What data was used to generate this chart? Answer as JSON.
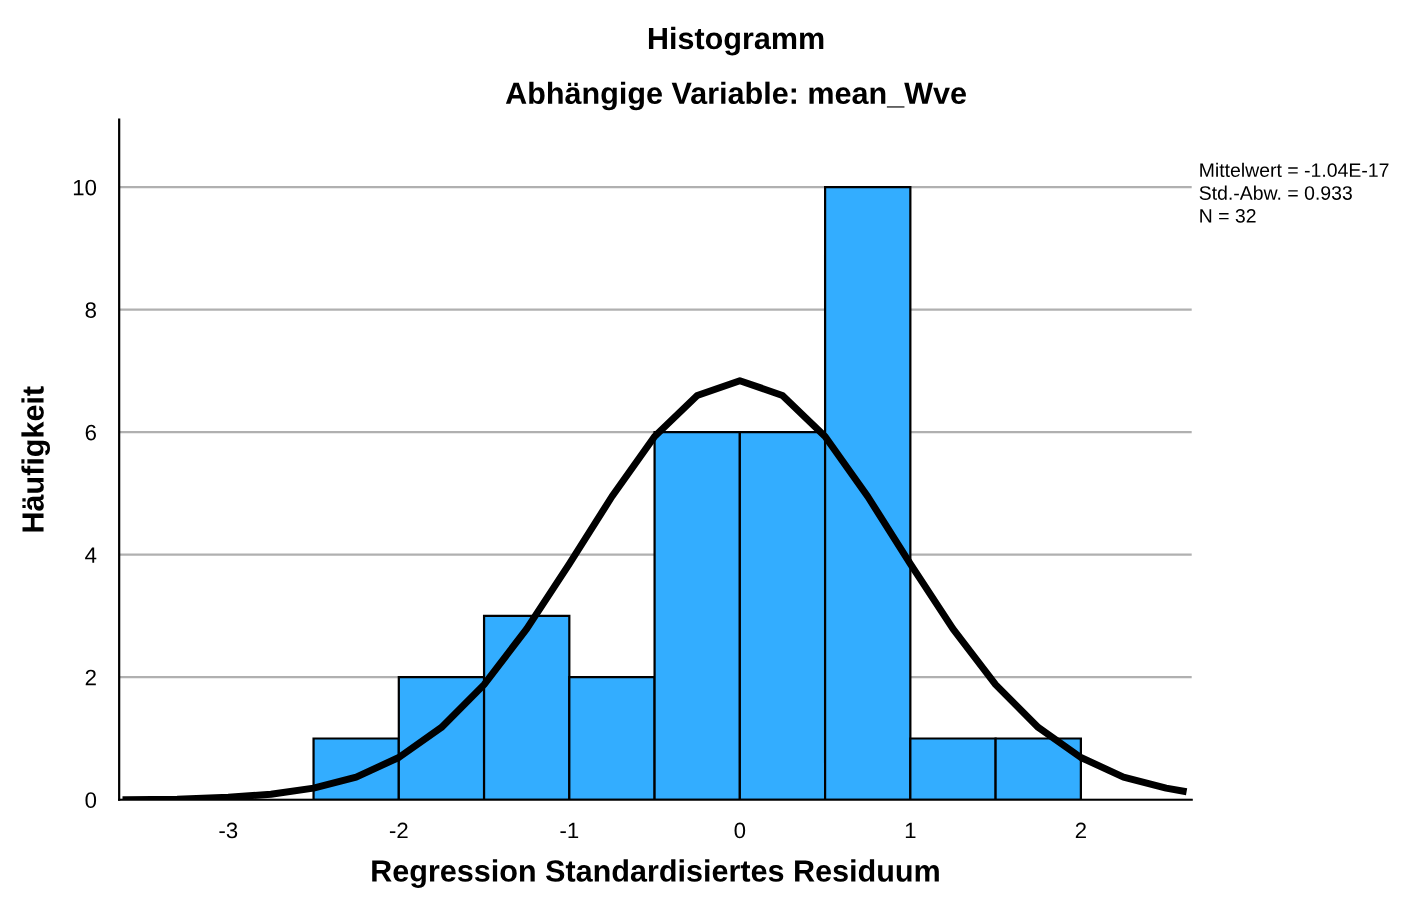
{
  "chart_data": {
    "type": "histogram",
    "title": "Histogramm",
    "subtitle": "Abhängige Variable: mean_Wve",
    "xlabel": "Regression Standardisiertes Residuum",
    "ylabel": "Häufigkeit",
    "bins": [
      -2.5,
      -2,
      -1.5,
      -1,
      -0.5,
      0,
      0.5,
      1,
      1.5,
      2
    ],
    "values": [
      1,
      2,
      3,
      2,
      6,
      6,
      10,
      1,
      1
    ],
    "color": "#33adff",
    "series": [
      {
        "type": "line",
        "color": "#000000",
        "x": [
          -3.6,
          -3.3,
          -3,
          -2.75,
          -2.5,
          -2.25,
          -2,
          -1.75,
          -1.5,
          -1.25,
          -1,
          -0.75,
          -0.5,
          -0.25,
          0,
          0.25,
          0.5,
          0.75,
          1,
          1.25,
          1.5,
          1.75,
          2,
          2.25,
          2.5,
          2.6
        ],
        "values": [
          0.0,
          0.01,
          0.04,
          0.09,
          0.19,
          0.37,
          0.69,
          1.18,
          1.88,
          2.79,
          3.85,
          4.95,
          5.93,
          6.6,
          6.84,
          6.6,
          5.93,
          4.95,
          3.85,
          2.79,
          1.88,
          1.18,
          0.69,
          0.37,
          0.19,
          0.14
        ]
      }
    ],
    "xlim": [
      -3.64,
      2.65
    ],
    "ylim": [
      0,
      11.1
    ],
    "xticks": [
      -3,
      -2,
      -1,
      0,
      1,
      2
    ],
    "yticks": [
      0,
      2,
      4,
      6,
      8,
      10
    ],
    "grid": "y",
    "annotations": [
      "Mittelwert = -1.04E-17",
      "Std.-Abw. = 0.933",
      "N = 32"
    ]
  }
}
